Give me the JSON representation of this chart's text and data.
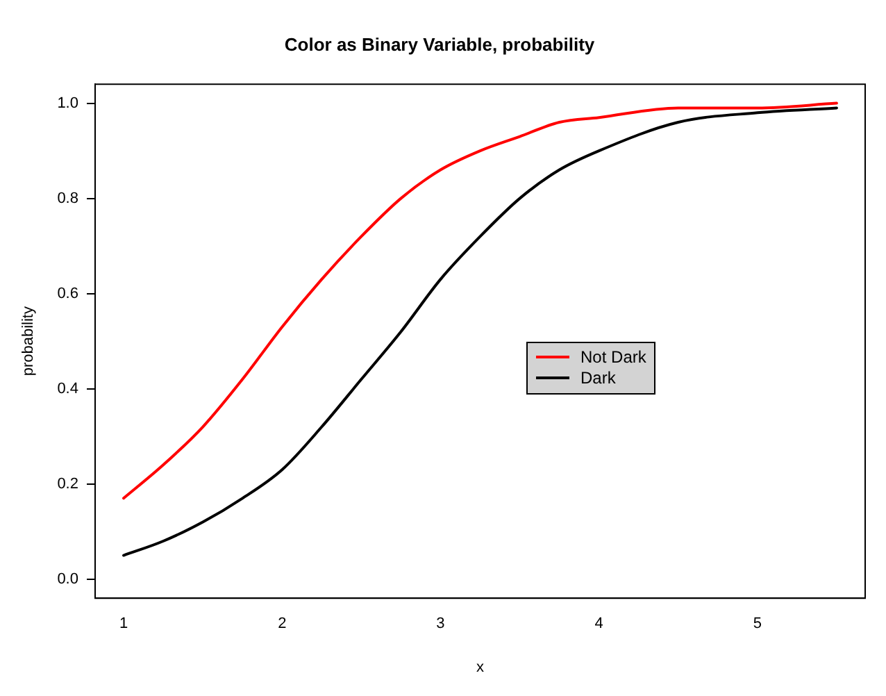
{
  "chart_data": {
    "type": "line",
    "title": "Color as Binary Variable, probability",
    "xlabel": "x",
    "ylabel": "probability",
    "x": [
      1,
      1.25,
      1.5,
      1.75,
      2,
      2.25,
      2.5,
      2.75,
      3,
      3.25,
      3.5,
      3.75,
      4,
      4.5,
      5,
      5.5
    ],
    "series": [
      {
        "name": "Not Dark",
        "color": "#ff0000",
        "values": [
          0.17,
          0.24,
          0.32,
          0.42,
          0.53,
          0.63,
          0.72,
          0.8,
          0.86,
          0.9,
          0.93,
          0.96,
          0.97,
          0.99,
          0.99,
          1.0
        ]
      },
      {
        "name": "Dark",
        "color": "#000000",
        "values": [
          0.05,
          0.08,
          0.12,
          0.17,
          0.23,
          0.32,
          0.42,
          0.52,
          0.63,
          0.72,
          0.8,
          0.86,
          0.9,
          0.96,
          0.98,
          0.99
        ]
      }
    ],
    "xlim": [
      0.82,
      5.68
    ],
    "ylim": [
      -0.04,
      1.04
    ],
    "xticks": [
      1,
      2,
      3,
      4,
      5
    ],
    "yticks": [
      {
        "value": 0,
        "label": "0.0"
      },
      {
        "value": 0.2,
        "label": "0.2"
      },
      {
        "value": 0.4,
        "label": "0.4"
      },
      {
        "value": 0.6,
        "label": "0.6"
      },
      {
        "value": 0.8,
        "label": "0.8"
      },
      {
        "value": 1,
        "label": "1.0"
      }
    ],
    "grid": false,
    "legend": "right",
    "marker": "none",
    "line_style": "solid"
  }
}
